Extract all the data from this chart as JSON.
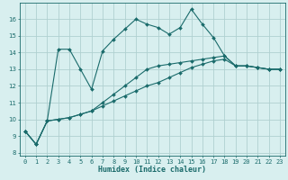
{
  "xlabel": "Humidex (Indice chaleur)",
  "ylabel": "",
  "background_color": "#d8efef",
  "grid_color": "#b0d0d0",
  "line_color": "#1a6b6b",
  "xlim": [
    -0.5,
    23.5
  ],
  "ylim": [
    7.8,
    17.0
  ],
  "yticks": [
    8,
    9,
    10,
    11,
    12,
    13,
    14,
    15,
    16
  ],
  "xticks": [
    0,
    1,
    2,
    3,
    4,
    5,
    6,
    7,
    8,
    9,
    10,
    11,
    12,
    13,
    14,
    15,
    16,
    17,
    18,
    19,
    20,
    21,
    22,
    23
  ],
  "series1_x": [
    0,
    1,
    2,
    3,
    4,
    5,
    6,
    7,
    8,
    9,
    10,
    11,
    12,
    13,
    14,
    15,
    16,
    17,
    18,
    19,
    20,
    21,
    22,
    23
  ],
  "series1_y": [
    9.3,
    8.5,
    9.9,
    14.2,
    14.2,
    13.0,
    11.8,
    14.1,
    14.8,
    15.4,
    16.0,
    15.7,
    15.5,
    15.1,
    15.5,
    16.6,
    15.7,
    14.9,
    13.8,
    13.2,
    13.2,
    13.1,
    13.0,
    13.0
  ],
  "series2_x": [
    0,
    1,
    2,
    3,
    4,
    5,
    6,
    7,
    8,
    9,
    10,
    11,
    12,
    13,
    14,
    15,
    16,
    17,
    18,
    19,
    20,
    21,
    22,
    23
  ],
  "series2_y": [
    9.3,
    8.5,
    9.9,
    10.0,
    10.1,
    10.3,
    10.5,
    10.8,
    11.1,
    11.4,
    11.7,
    12.0,
    12.2,
    12.5,
    12.8,
    13.1,
    13.3,
    13.5,
    13.6,
    13.2,
    13.2,
    13.1,
    13.0,
    13.0
  ],
  "series3_x": [
    0,
    1,
    2,
    3,
    4,
    5,
    6,
    7,
    8,
    9,
    10,
    11,
    12,
    13,
    14,
    15,
    16,
    17,
    18,
    19,
    20,
    21,
    22,
    23
  ],
  "series3_y": [
    9.3,
    8.5,
    9.9,
    10.0,
    10.1,
    10.3,
    10.5,
    11.0,
    11.5,
    12.0,
    12.5,
    13.0,
    13.2,
    13.3,
    13.4,
    13.5,
    13.6,
    13.7,
    13.8,
    13.2,
    13.2,
    13.1,
    13.0,
    13.0
  ],
  "xlabel_fontsize": 6.0,
  "tick_fontsize": 5.0,
  "line_width": 0.8,
  "marker_size": 2.0
}
